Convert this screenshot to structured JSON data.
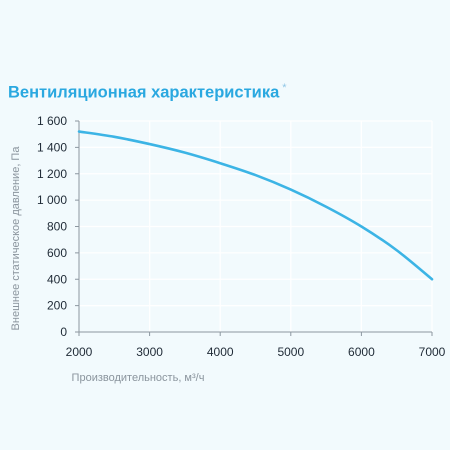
{
  "header": {
    "title": "Вентиляционная характеристика",
    "title_marker": "*"
  },
  "colors": {
    "title": "#2aa8e0",
    "curve": "#3cb4e5",
    "grid": "#ffffff",
    "background": "#f2fafd"
  },
  "chart_data": {
    "type": "line",
    "title": "Вентиляционная характеристика *",
    "xlabel": "Производительность, м³/ч",
    "ylabel": "Внешнее статическое давление, Па",
    "xlim": [
      2000,
      7000
    ],
    "ylim": [
      0,
      1600
    ],
    "x_ticks": [
      2000,
      3000,
      4000,
      5000,
      6000,
      7000
    ],
    "x_tick_labels": [
      "2000",
      "3000",
      "4000",
      "5000",
      "6000",
      "7000"
    ],
    "y_ticks": [
      0,
      200,
      400,
      600,
      800,
      1000,
      1200,
      1400,
      1600
    ],
    "y_tick_labels": [
      "0",
      "200",
      "400",
      "600",
      "800",
      "1 000",
      "1 200",
      "1 400",
      "1 600"
    ],
    "grid": true,
    "series": [
      {
        "x": [
          2000,
          2500,
          3000,
          3500,
          4000,
          4500,
          5000,
          5500,
          6000,
          6500,
          7000
        ],
        "y": [
          1520,
          1480,
          1425,
          1360,
          1280,
          1190,
          1080,
          950,
          800,
          620,
          400
        ]
      }
    ]
  }
}
